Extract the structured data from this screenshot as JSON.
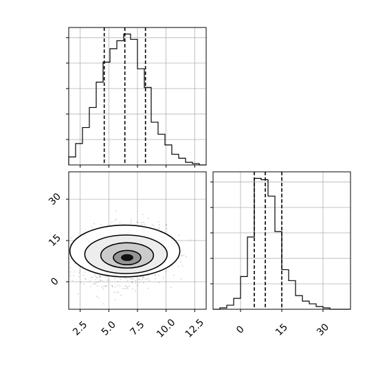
{
  "chart_data": {
    "type": "corner",
    "colors": {
      "line": "#000000",
      "grid": "#b0b0b0",
      "scatter": "#000000"
    },
    "grid": true,
    "parameters": [
      {
        "range": [
          1.5,
          13.5
        ],
        "ticks": [
          2.5,
          5.0,
          7.5,
          10.0,
          12.5
        ],
        "tick_labels": [
          "2.5",
          "5.0",
          "7.5",
          "10.0",
          "12.5"
        ],
        "quantiles": [
          4.6,
          6.4,
          8.2
        ],
        "histogram": {
          "bin_edges": [
            1.5,
            2.1,
            2.7,
            3.3,
            3.9,
            4.5,
            5.1,
            5.7,
            6.3,
            6.9,
            7.5,
            8.1,
            8.7,
            9.3,
            9.9,
            10.5,
            11.1,
            11.7,
            12.3,
            12.9,
            13.5
          ],
          "counts": [
            6,
            16,
            28,
            43,
            62,
            77,
            87,
            93,
            98,
            94,
            72,
            58,
            32,
            23,
            15,
            8,
            5,
            2,
            1,
            0
          ]
        }
      },
      {
        "range": [
          -10,
          40
        ],
        "ticks": [
          0,
          15,
          30
        ],
        "tick_labels": [
          "0",
          "15",
          "30"
        ],
        "quantiles": [
          5.0,
          9.0,
          15.0
        ],
        "histogram": {
          "bin_edges": [
            -10,
            -7.5,
            -5,
            -2.5,
            0,
            2.5,
            5,
            7.5,
            10,
            12.5,
            15,
            17.5,
            20,
            22.5,
            25,
            27.5,
            30,
            32.5,
            35,
            37.5,
            40
          ],
          "counts": [
            0,
            1,
            3,
            8,
            24,
            53,
            96,
            95,
            83,
            57,
            29,
            21,
            10,
            6,
            4,
            2,
            1,
            0,
            0,
            0
          ]
        }
      }
    ],
    "joint": {
      "center": [
        6.4,
        9.5
      ],
      "spread": [
        1.8,
        5.0
      ],
      "contour_levels": [
        {
          "center": [
            6.4,
            11.2
          ],
          "rx": 4.8,
          "ry": 9.4
        },
        {
          "center": [
            6.5,
            10.0
          ],
          "rx": 3.6,
          "ry": 7.0
        },
        {
          "center": [
            6.6,
            9.6
          ],
          "rx": 2.3,
          "ry": 4.6
        },
        {
          "center": [
            6.6,
            8.8
          ],
          "rx": 1.2,
          "ry": 2.6
        }
      ]
    }
  }
}
